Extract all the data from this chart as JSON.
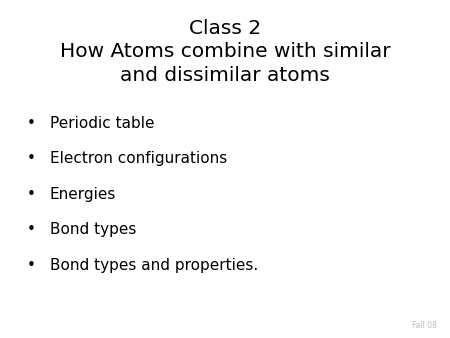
{
  "title_line1": "Class 2",
  "title_line2": "How Atoms combine with similar",
  "title_line3": "and dissimilar atoms",
  "bullet_items": [
    "Periodic table",
    "Electron configurations",
    "Energies",
    "Bond types",
    "Bond types and properties."
  ],
  "background_color": "#ffffff",
  "text_color": "#000000",
  "title_fontsize": 14.5,
  "bullet_fontsize": 11,
  "footer_text": "Fall 08",
  "footer_fontsize": 5.5,
  "footer_color": "#bbbbbb"
}
